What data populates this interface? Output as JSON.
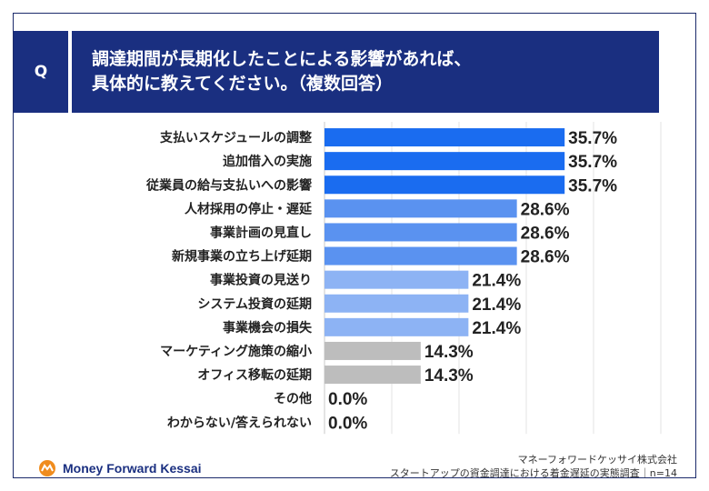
{
  "question": {
    "badge": "Q",
    "line1": "調達期間が長期化したことによる影響があれば、",
    "line2": "具体的に教えてください。（複数回答）"
  },
  "chart_data": {
    "type": "bar",
    "orientation": "horizontal",
    "categories": [
      "支払いスケジュールの調整",
      "追加借入の実施",
      "従業員の給与支払いへの影響",
      "人材採用の停止・遅延",
      "事業計画の見直し",
      "新規事業の立ち上げ延期",
      "事業投資の見送り",
      "システム投資の延期",
      "事業機会の損失",
      "マーケティング施策の縮小",
      "オフィス移転の延期",
      "その他",
      "わからない/答えられない"
    ],
    "values": [
      35.7,
      35.7,
      35.7,
      28.6,
      28.6,
      28.6,
      21.4,
      21.4,
      21.4,
      14.3,
      14.3,
      0.0,
      0.0
    ],
    "value_labels": [
      "35.7%",
      "35.7%",
      "35.7%",
      "28.6%",
      "28.6%",
      "28.6%",
      "21.4%",
      "21.4%",
      "21.4%",
      "14.3%",
      "14.3%",
      "0.0%",
      "0.0%"
    ],
    "bar_colors": [
      "#1a6cf0",
      "#1a6cf0",
      "#1a6cf0",
      "#5a92f0",
      "#5a92f0",
      "#5a92f0",
      "#8db3f4",
      "#8db3f4",
      "#8db3f4",
      "#bdbdbd",
      "#bdbdbd",
      "#bdbdbd",
      "#bdbdbd"
    ],
    "xlim": [
      0,
      50
    ],
    "grid": true
  },
  "footer": {
    "logo_text": "Money Forward Kessai",
    "company": "マネーフォワードケッサイ株式会社",
    "survey": "スタートアップの資金調達における着金遅延の実態調査｜n=14"
  },
  "colors": {
    "brand_navy": "#1a2f80",
    "logo_orange": "#f08c1e"
  }
}
